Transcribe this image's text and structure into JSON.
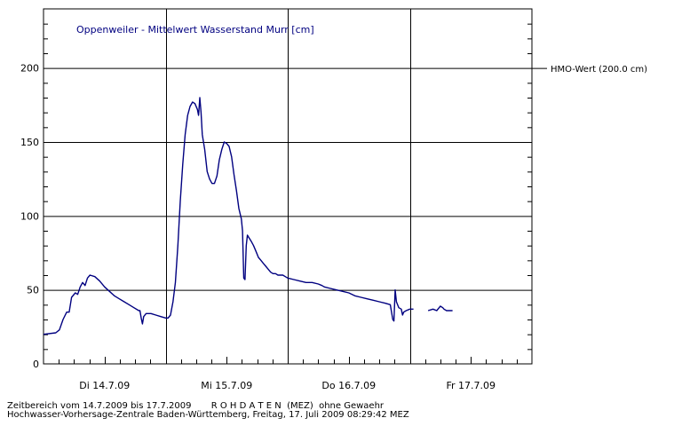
{
  "chart_data": {
    "type": "line",
    "title": "Oppenweiler - Mittelwert Wasserstand Murr [cm]",
    "ylim": [
      0,
      240
    ],
    "xlim": [
      0,
      4.0
    ],
    "y_ticks": [
      0,
      50,
      100,
      150,
      200
    ],
    "x_tick_labels": [
      {
        "x": 0.5,
        "label": "Di 14.7.09"
      },
      {
        "x": 1.5,
        "label": "Mi 15.7.09"
      },
      {
        "x": 2.5,
        "label": "Do 16.7.09"
      },
      {
        "x": 3.5,
        "label": "Fr 17.7.09"
      }
    ],
    "day_boundaries": [
      1,
      2,
      3
    ],
    "minor_ticks_per_day": 8,
    "grid": true,
    "reference_line": {
      "value": 200,
      "label": "HMO-Wert (200.0 cm)"
    },
    "series": [
      {
        "color": "#000080",
        "segments": [
          [
            [
              0.0,
              20
            ],
            [
              0.1,
              21
            ],
            [
              0.13,
              23
            ],
            [
              0.16,
              30
            ],
            [
              0.19,
              35
            ],
            [
              0.21,
              35
            ],
            [
              0.23,
              45
            ],
            [
              0.26,
              48
            ],
            [
              0.28,
              47
            ],
            [
              0.3,
              52
            ],
            [
              0.32,
              55
            ],
            [
              0.34,
              53
            ],
            [
              0.36,
              58
            ],
            [
              0.38,
              60
            ],
            [
              0.42,
              59
            ],
            [
              0.46,
              56
            ],
            [
              0.5,
              52
            ],
            [
              0.54,
              49
            ],
            [
              0.58,
              46
            ],
            [
              0.62,
              44
            ],
            [
              0.66,
              42
            ],
            [
              0.7,
              40
            ],
            [
              0.74,
              38
            ],
            [
              0.78,
              36
            ],
            [
              0.79,
              36
            ],
            [
              0.8,
              31
            ],
            [
              0.81,
              27
            ],
            [
              0.82,
              32
            ],
            [
              0.84,
              34
            ],
            [
              0.88,
              34
            ],
            [
              0.92,
              33
            ],
            [
              0.96,
              32
            ],
            [
              1.0,
              31
            ],
            [
              1.02,
              31
            ],
            [
              1.04,
              33
            ],
            [
              1.06,
              42
            ],
            [
              1.08,
              55
            ],
            [
              1.1,
              80
            ],
            [
              1.12,
              110
            ],
            [
              1.14,
              135
            ],
            [
              1.16,
              155
            ],
            [
              1.18,
              168
            ],
            [
              1.2,
              174
            ],
            [
              1.22,
              177
            ],
            [
              1.24,
              176
            ],
            [
              1.26,
              172
            ],
            [
              1.27,
              168
            ],
            [
              1.28,
              180
            ],
            [
              1.29,
              170
            ],
            [
              1.3,
              155
            ],
            [
              1.32,
              145
            ],
            [
              1.34,
              130
            ],
            [
              1.36,
              125
            ],
            [
              1.38,
              122
            ],
            [
              1.4,
              122
            ],
            [
              1.42,
              127
            ],
            [
              1.44,
              138
            ],
            [
              1.46,
              145
            ],
            [
              1.48,
              150
            ],
            [
              1.5,
              149
            ],
            [
              1.52,
              147
            ],
            [
              1.54,
              140
            ],
            [
              1.56,
              128
            ],
            [
              1.58,
              117
            ],
            [
              1.6,
              105
            ],
            [
              1.62,
              98
            ],
            [
              1.63,
              90
            ],
            [
              1.64,
              58
            ],
            [
              1.65,
              57
            ],
            [
              1.66,
              80
            ],
            [
              1.67,
              87
            ],
            [
              1.7,
              83
            ],
            [
              1.72,
              80
            ],
            [
              1.74,
              76
            ],
            [
              1.76,
              72
            ],
            [
              1.78,
              70
            ],
            [
              1.8,
              68
            ],
            [
              1.82,
              66
            ],
            [
              1.84,
              64
            ],
            [
              1.86,
              62
            ],
            [
              1.88,
              61
            ],
            [
              1.9,
              61
            ],
            [
              1.92,
              60
            ],
            [
              1.94,
              60
            ],
            [
              1.96,
              60
            ],
            [
              1.98,
              59
            ],
            [
              2.0,
              58
            ],
            [
              2.05,
              57
            ],
            [
              2.1,
              56
            ],
            [
              2.15,
              55
            ],
            [
              2.2,
              55
            ],
            [
              2.25,
              54
            ],
            [
              2.28,
              53
            ],
            [
              2.3,
              52
            ],
            [
              2.35,
              51
            ],
            [
              2.4,
              50
            ],
            [
              2.45,
              49
            ],
            [
              2.5,
              48
            ],
            [
              2.55,
              46
            ],
            [
              2.6,
              45
            ],
            [
              2.65,
              44
            ],
            [
              2.7,
              43
            ],
            [
              2.75,
              42
            ],
            [
              2.8,
              41
            ],
            [
              2.84,
              40
            ],
            [
              2.86,
              30
            ],
            [
              2.87,
              29
            ],
            [
              2.88,
              50
            ],
            [
              2.89,
              42
            ],
            [
              2.91,
              38
            ],
            [
              2.93,
              37
            ],
            [
              2.94,
              33
            ],
            [
              2.95,
              35
            ],
            [
              2.97,
              36
            ],
            [
              3.0,
              37
            ],
            [
              3.03,
              37
            ]
          ],
          [
            [
              3.15,
              36
            ],
            [
              3.19,
              37
            ],
            [
              3.22,
              36
            ],
            [
              3.24,
              38
            ],
            [
              3.25,
              39
            ],
            [
              3.27,
              38
            ],
            [
              3.28,
              37
            ],
            [
              3.3,
              36
            ],
            [
              3.35,
              36
            ]
          ]
        ]
      }
    ]
  },
  "footer": {
    "line1": "Zeitbereich vom 14.7.2009 bis 17.7.2009       R O H D A T E N  (MEZ)  ohne Gewaehr",
    "line2": "Hochwasser-Vorhersage-Zentrale Baden-Württemberg, Freitag, 17. Juli 2009 08:29:42 MEZ"
  }
}
